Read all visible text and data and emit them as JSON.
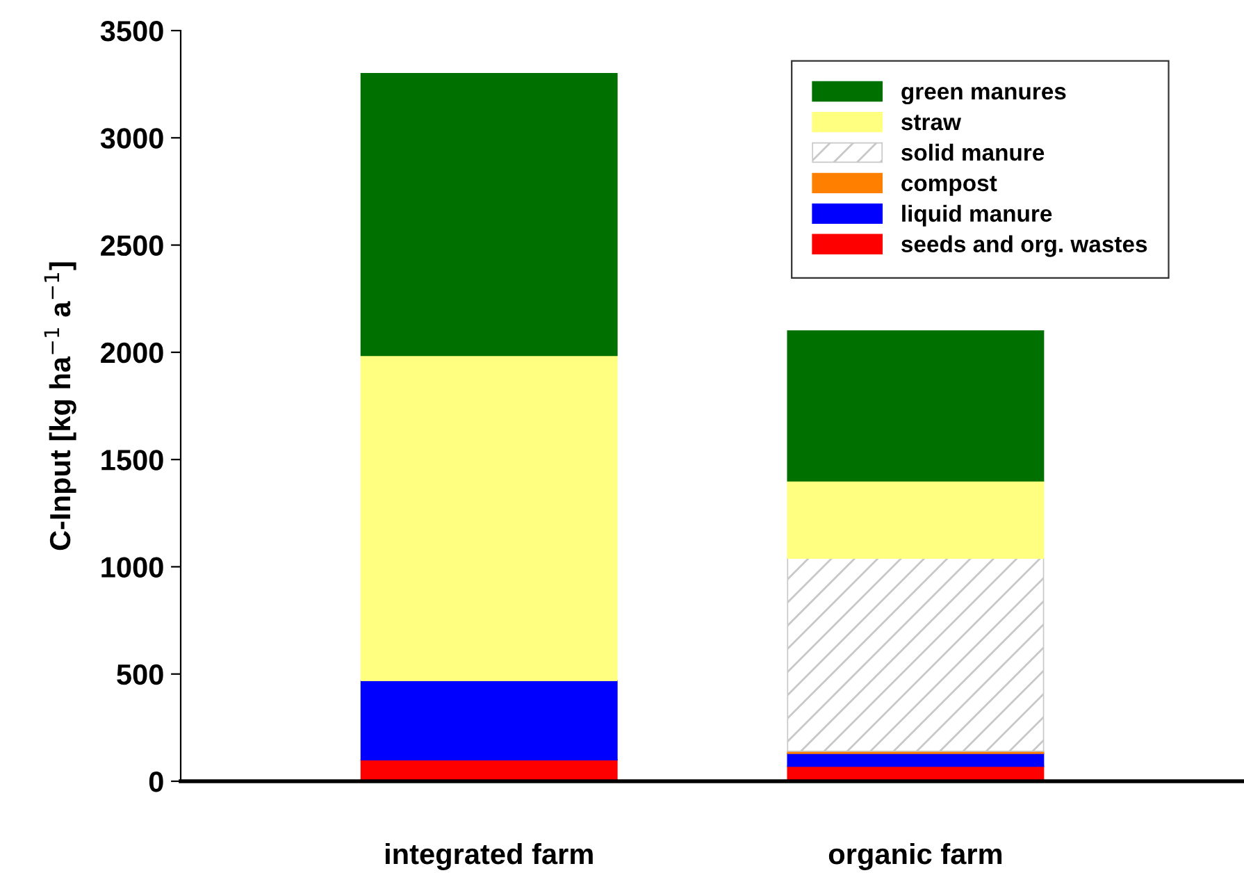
{
  "chart_data": {
    "type": "bar",
    "stacked": true,
    "ylabel": "C-Input [kg ha$^{−1}$ a$^{−1}$]",
    "categories": [
      "integrated farm",
      "organic farm"
    ],
    "ylim": [
      0,
      3500
    ],
    "yticks": [
      0,
      500,
      1000,
      1500,
      2000,
      2500,
      3000,
      3500
    ],
    "grid": false,
    "legend": "top right",
    "series": [
      {
        "name": "seeds and org. wastes",
        "color": "#ff0000",
        "values": [
          100,
          70
        ]
      },
      {
        "name": "liquid manure",
        "color": "#0000ff",
        "values": [
          370,
          60
        ]
      },
      {
        "name": "compost",
        "color": "#ff8000",
        "values": [
          0,
          10
        ]
      },
      {
        "name": "solid manure",
        "color": "#c8c8c8",
        "values": [
          0,
          900
        ]
      },
      {
        "name": "straw",
        "color": "#ffff80",
        "values": [
          1515,
          360
        ]
      },
      {
        "name": "green manures",
        "color": "#007000",
        "values": [
          1315,
          700
        ]
      }
    ]
  }
}
